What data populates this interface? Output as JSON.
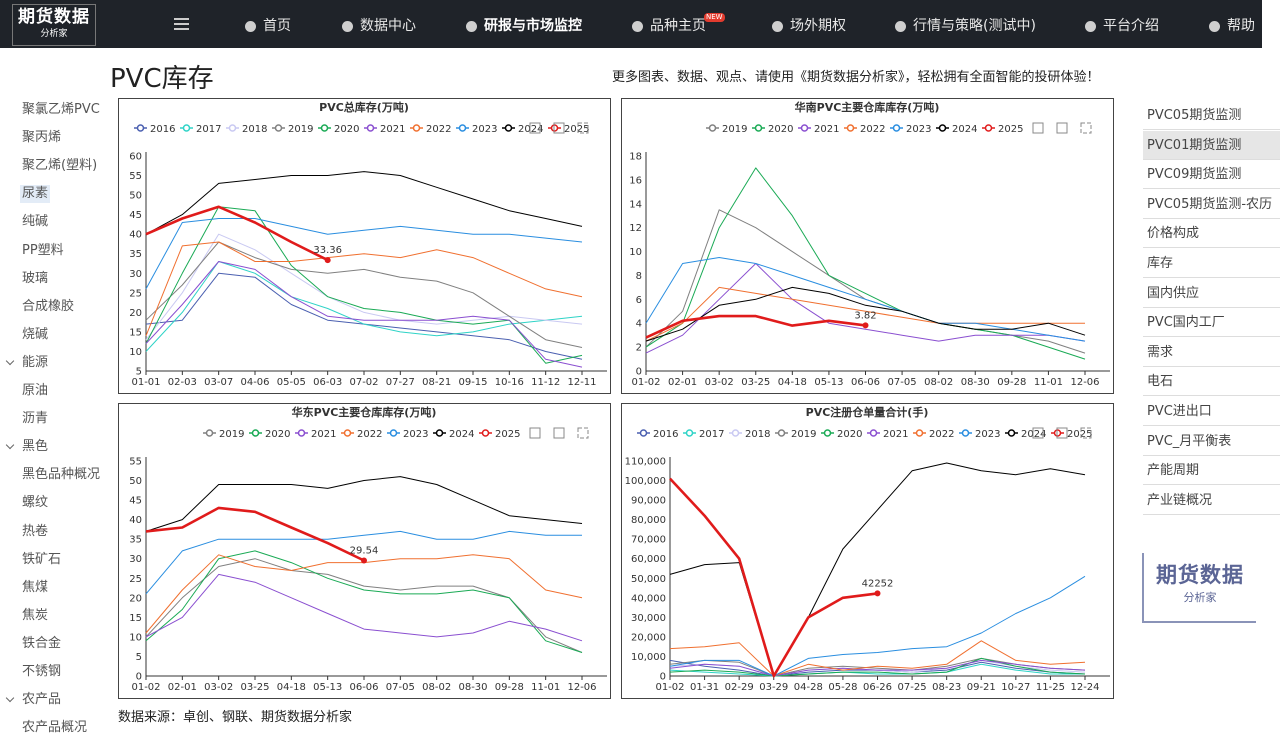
{
  "header": {
    "logo_title": "期货数据",
    "logo_sub": "分析家",
    "nav": [
      {
        "label": "首页"
      },
      {
        "label": "数据中心"
      },
      {
        "label": "研报与市场监控",
        "active": true
      },
      {
        "label": "品种主页",
        "badge": "NEW"
      },
      {
        "label": "场外期权"
      },
      {
        "label": "行情与策略(测试中)"
      },
      {
        "label": "平台介绍"
      },
      {
        "label": "帮助"
      }
    ]
  },
  "page": {
    "title": "PVC库存",
    "promo": "更多图表、数据、观点、请使用《期货数据分析家》，轻松拥有全面智能的投研体验！",
    "source": "数据来源：卓创、钢联、期货数据分析家"
  },
  "left_nav": [
    {
      "label": "聚氯乙烯PVC"
    },
    {
      "label": "聚丙烯"
    },
    {
      "label": "聚乙烯(塑料)"
    },
    {
      "label": "尿素",
      "active": true
    },
    {
      "label": "纯碱"
    },
    {
      "label": "PP塑料"
    },
    {
      "label": "玻璃"
    },
    {
      "label": "合成橡胶"
    },
    {
      "label": "烧碱"
    },
    {
      "label": "能源",
      "group": true
    },
    {
      "label": "原油"
    },
    {
      "label": "沥青"
    },
    {
      "label": "黑色",
      "group": true
    },
    {
      "label": "黑色品种概况"
    },
    {
      "label": "螺纹"
    },
    {
      "label": "热卷"
    },
    {
      "label": "铁矿石"
    },
    {
      "label": "焦煤"
    },
    {
      "label": "焦炭"
    },
    {
      "label": "铁合金"
    },
    {
      "label": "不锈钢"
    },
    {
      "label": "农产品",
      "group": true
    },
    {
      "label": "农产品概况"
    }
  ],
  "right_menu": [
    {
      "label": "PVC05期货监测"
    },
    {
      "label": "PVC01期货监测",
      "active": true
    },
    {
      "label": "PVC09期货监测"
    },
    {
      "label": "PVC05期货监测-农历"
    },
    {
      "label": "价格构成"
    },
    {
      "label": "库存"
    },
    {
      "label": "国内供应"
    },
    {
      "label": "PVC国内工厂"
    },
    {
      "label": "需求"
    },
    {
      "label": "电石"
    },
    {
      "label": "PVC进出口"
    },
    {
      "label": "PVC_月平衡表"
    },
    {
      "label": "产能周期"
    },
    {
      "label": "产业链概况"
    }
  ],
  "right_logo": {
    "title": "期货数据",
    "sub": "分析家"
  },
  "chart_data": [
    {
      "type": "line",
      "title": "PVC总库存(万吨)",
      "categories": [
        "01-01",
        "02-03",
        "03-07",
        "04-06",
        "05-05",
        "06-03",
        "07-02",
        "07-27",
        "08-21",
        "09-15",
        "10-16",
        "11-12",
        "12-11"
      ],
      "ylim": [
        5,
        60
      ],
      "yticks": [
        5,
        10,
        15,
        20,
        25,
        30,
        35,
        40,
        45,
        50,
        55,
        60
      ],
      "grid": false,
      "series": [
        {
          "name": "2016",
          "color": "#4a5fb0",
          "values": [
            17,
            18,
            30,
            29,
            22,
            18,
            17,
            16,
            15,
            14,
            13,
            10,
            8
          ]
        },
        {
          "name": "2017",
          "color": "#2fd3c7",
          "values": [
            10,
            20,
            33,
            30,
            24,
            21,
            17,
            15,
            14,
            15,
            17,
            18,
            19
          ]
        },
        {
          "name": "2018",
          "color": "#c9c9f2",
          "values": [
            13,
            25,
            40,
            36,
            30,
            24,
            20,
            18,
            17,
            18,
            19,
            18,
            17
          ]
        },
        {
          "name": "2019",
          "color": "#808080",
          "values": [
            18,
            27,
            38,
            34,
            31,
            30,
            31,
            29,
            28,
            25,
            19,
            13,
            11
          ]
        },
        {
          "name": "2020",
          "color": "#1aaa55",
          "values": [
            12,
            30,
            47,
            46,
            32,
            24,
            21,
            20,
            18,
            17,
            18,
            7,
            9
          ]
        },
        {
          "name": "2021",
          "color": "#8a4fd0",
          "values": [
            12,
            22,
            33,
            31,
            24,
            19,
            18,
            18,
            18,
            19,
            18,
            8,
            6
          ]
        },
        {
          "name": "2022",
          "color": "#f07030",
          "values": [
            14,
            37,
            38,
            33,
            33,
            34,
            35,
            34,
            36,
            34,
            30,
            26,
            24
          ]
        },
        {
          "name": "2023",
          "color": "#2a8ee0",
          "values": [
            26,
            43,
            44,
            44,
            42,
            40,
            41,
            42,
            41,
            40,
            40,
            39,
            38
          ]
        },
        {
          "name": "2024",
          "color": "#000000",
          "values": [
            40,
            45,
            53,
            54,
            55,
            55,
            56,
            55,
            52,
            49,
            46,
            44,
            42
          ]
        },
        {
          "name": "2025",
          "color": "#e01b1b",
          "values": [
            40,
            44,
            47,
            43,
            38,
            33.36,
            null,
            null,
            null,
            null,
            null,
            null,
            null
          ]
        }
      ]
    },
    {
      "type": "line",
      "title": "华南PVC主要仓库库存(万吨)",
      "categories": [
        "01-02",
        "02-01",
        "03-02",
        "03-25",
        "04-18",
        "05-13",
        "06-06",
        "07-05",
        "08-02",
        "08-30",
        "09-28",
        "11-01",
        "12-06"
      ],
      "ylim": [
        0,
        18
      ],
      "yticks": [
        0,
        2,
        4,
        6,
        8,
        10,
        12,
        14,
        16,
        18
      ],
      "grid": false,
      "series": [
        {
          "name": "2019",
          "color": "#808080",
          "values": [
            2,
            5,
            13.5,
            12,
            10,
            8,
            6,
            5,
            4,
            3.5,
            3,
            2.5,
            1.5
          ]
        },
        {
          "name": "2020",
          "color": "#1aaa55",
          "values": [
            2,
            4,
            12,
            17,
            13,
            8,
            6.5,
            5,
            4,
            3.5,
            3,
            2,
            1
          ]
        },
        {
          "name": "2021",
          "color": "#8a4fd0",
          "values": [
            1.5,
            3,
            6,
            9,
            6,
            4,
            3.5,
            3,
            2.5,
            3,
            3,
            3,
            2.5
          ]
        },
        {
          "name": "2022",
          "color": "#f07030",
          "values": [
            2.5,
            4,
            7,
            6.5,
            6,
            5.5,
            5,
            4.5,
            4,
            4,
            4,
            4,
            4
          ]
        },
        {
          "name": "2023",
          "color": "#2a8ee0",
          "values": [
            4,
            9,
            9.5,
            9,
            8,
            7,
            6,
            5,
            4,
            4,
            3.5,
            3,
            2.5
          ]
        },
        {
          "name": "2024",
          "color": "#000000",
          "values": [
            2.5,
            3.5,
            5.5,
            6,
            7,
            6.5,
            5.5,
            5,
            4,
            3.5,
            3.5,
            4,
            3
          ]
        },
        {
          "name": "2025",
          "color": "#e01b1b",
          "values": [
            2.8,
            4.2,
            4.6,
            4.6,
            3.8,
            4.2,
            3.82,
            null,
            null,
            null,
            null,
            null,
            null
          ]
        }
      ]
    },
    {
      "type": "line",
      "title": "华东PVC主要仓库库存(万吨)",
      "categories": [
        "01-02",
        "02-01",
        "03-02",
        "03-25",
        "04-18",
        "05-13",
        "06-06",
        "07-05",
        "08-02",
        "08-30",
        "09-28",
        "11-01",
        "12-06"
      ],
      "ylim": [
        0,
        55
      ],
      "yticks": [
        0,
        5,
        10,
        15,
        20,
        25,
        30,
        35,
        40,
        45,
        50,
        55
      ],
      "grid": false,
      "series": [
        {
          "name": "2019",
          "color": "#808080",
          "values": [
            10,
            20,
            28,
            30,
            27,
            26,
            23,
            22,
            23,
            23,
            20,
            10,
            6
          ]
        },
        {
          "name": "2020",
          "color": "#1aaa55",
          "values": [
            9,
            17,
            30,
            32,
            29,
            25,
            22,
            21,
            21,
            22,
            20,
            9,
            6
          ]
        },
        {
          "name": "2021",
          "color": "#8a4fd0",
          "values": [
            10,
            15,
            26,
            24,
            20,
            16,
            12,
            11,
            10,
            11,
            14,
            12,
            9
          ]
        },
        {
          "name": "2022",
          "color": "#f07030",
          "values": [
            11,
            22,
            31,
            28,
            27,
            29,
            29,
            30,
            30,
            31,
            30,
            22,
            20
          ]
        },
        {
          "name": "2023",
          "color": "#2a8ee0",
          "values": [
            21,
            32,
            35,
            35,
            35,
            35,
            36,
            37,
            35,
            35,
            37,
            36,
            36
          ]
        },
        {
          "name": "2024",
          "color": "#000000",
          "values": [
            37,
            40,
            49,
            49,
            49,
            48,
            50,
            51,
            49,
            45,
            41,
            40,
            39
          ]
        },
        {
          "name": "2025",
          "color": "#e01b1b",
          "values": [
            37,
            38,
            43,
            42,
            38,
            34,
            29.54,
            null,
            null,
            null,
            null,
            null,
            null
          ]
        }
      ]
    },
    {
      "type": "line",
      "title": "PVC注册仓单量合计(手)",
      "categories": [
        "01-02",
        "01-31",
        "02-29",
        "03-29",
        "04-28",
        "05-28",
        "06-26",
        "07-25",
        "08-23",
        "09-21",
        "10-27",
        "11-25",
        "12-24"
      ],
      "ylim": [
        0,
        110000
      ],
      "yticks": [
        0,
        {
          "value": 10000,
          "label": "10,000"
        },
        {
          "value": 20000,
          "label": "20,000"
        },
        {
          "value": 30000,
          "label": "30,000"
        },
        {
          "value": 40000,
          "label": "40,000"
        },
        {
          "value": 50000,
          "label": "50,000"
        },
        {
          "value": 60000,
          "label": "60,000"
        },
        {
          "value": 70000,
          "label": "70,000"
        },
        {
          "value": 80000,
          "label": "80,000"
        },
        {
          "value": 90000,
          "label": "90,000"
        },
        {
          "value": 100000,
          "label": "100,000"
        },
        {
          "value": 110000,
          "label": "110,000"
        }
      ],
      "grid": false,
      "series": [
        {
          "name": "2016",
          "color": "#4a5fb0",
          "values": [
            8000,
            5000,
            3000,
            0,
            2000,
            3000,
            3000,
            2000,
            3000,
            7000,
            4000,
            2000,
            1000
          ]
        },
        {
          "name": "2017",
          "color": "#2fd3c7",
          "values": [
            3000,
            2000,
            1000,
            0,
            1000,
            2000,
            1000,
            1000,
            2000,
            6000,
            3000,
            1000,
            1000
          ]
        },
        {
          "name": "2018",
          "color": "#c9c9f2",
          "values": [
            5000,
            6000,
            5000,
            0,
            3000,
            4000,
            3000,
            2000,
            4000,
            8000,
            5000,
            3000,
            2000
          ]
        },
        {
          "name": "2019",
          "color": "#808080",
          "values": [
            6000,
            8000,
            7000,
            0,
            4000,
            5000,
            4000,
            3000,
            5000,
            9000,
            6000,
            4000,
            3000
          ]
        },
        {
          "name": "2020",
          "color": "#1aaa55",
          "values": [
            2000,
            3000,
            2000,
            0,
            1000,
            2000,
            2000,
            1000,
            2000,
            9000,
            5000,
            2000,
            1000
          ]
        },
        {
          "name": "2021",
          "color": "#8a4fd0",
          "values": [
            4000,
            6000,
            5000,
            0,
            3000,
            4000,
            3000,
            3000,
            4000,
            8000,
            6000,
            4000,
            3000
          ]
        },
        {
          "name": "2022",
          "color": "#f07030",
          "values": [
            14000,
            15000,
            17000,
            0,
            6000,
            3000,
            5000,
            4000,
            6000,
            18000,
            8000,
            6000,
            7000
          ]
        },
        {
          "name": "2023",
          "color": "#2a8ee0",
          "values": [
            5000,
            8000,
            8000,
            0,
            9000,
            11000,
            12000,
            14000,
            15000,
            22000,
            32000,
            40000,
            51000
          ]
        },
        {
          "name": "2024",
          "color": "#000000",
          "values": [
            52000,
            57000,
            58000,
            0,
            30000,
            65000,
            85000,
            105000,
            109000,
            105000,
            103000,
            106000,
            103000
          ]
        },
        {
          "name": "2025",
          "color": "#e01b1b",
          "values": [
            101000,
            82000,
            60000,
            0,
            30000,
            40000,
            42252,
            null,
            null,
            null,
            null,
            null,
            null
          ]
        }
      ]
    }
  ]
}
